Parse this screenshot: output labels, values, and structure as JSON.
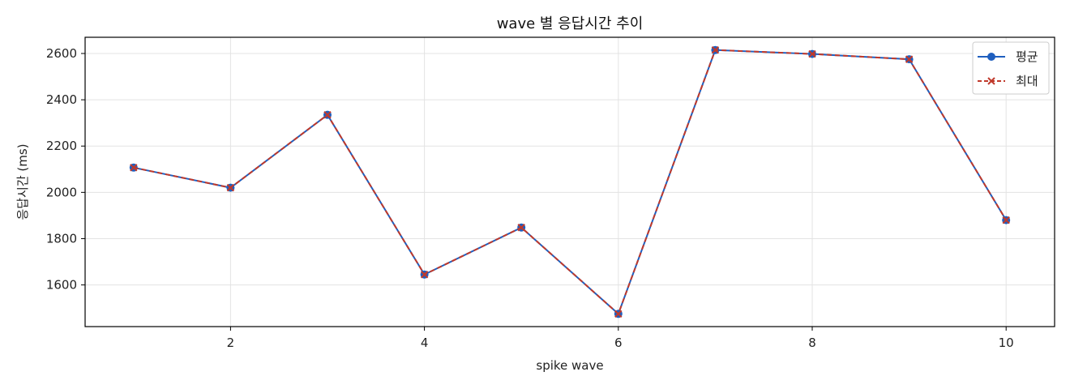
{
  "chart_data": {
    "type": "line",
    "title": "wave 별 응답시간 추이",
    "xlabel": "spike wave",
    "ylabel": "응답시간 (ms)",
    "xlim": [
      0.5,
      10.5
    ],
    "ylim": [
      1420,
      2670
    ],
    "xticks": [
      2,
      4,
      6,
      8,
      10
    ],
    "yticks": [
      1600,
      1800,
      2000,
      2200,
      2400,
      2600
    ],
    "grid": true,
    "legend_position": "top-right",
    "x": [
      1,
      2,
      3,
      4,
      5,
      6,
      7,
      8,
      9,
      10
    ],
    "series": [
      {
        "name": "평균",
        "color": "#1f5fbf",
        "style": "solid",
        "marker": "circle",
        "values": [
          2107,
          2020,
          2335,
          1645,
          1848,
          1475,
          2615,
          2598,
          2575,
          1880
        ]
      },
      {
        "name": "최대",
        "color": "#c0392b",
        "style": "dashed",
        "marker": "x",
        "values": [
          2107,
          2020,
          2335,
          1645,
          1848,
          1475,
          2615,
          2598,
          2575,
          1880
        ]
      }
    ]
  }
}
